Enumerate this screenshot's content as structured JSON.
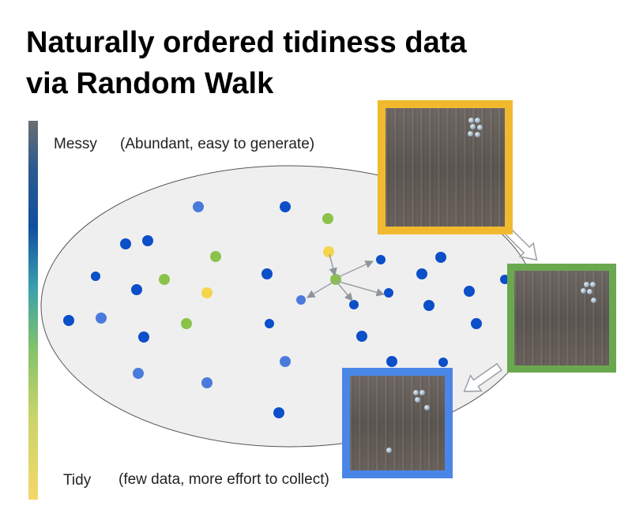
{
  "title": {
    "line1": "Naturally ordered tidiness data",
    "line2": "via Random Walk"
  },
  "scale": {
    "top_label": "Messy",
    "top_note": "(Abundant, easy to generate)",
    "bottom_label": "Tidy",
    "bottom_note": "(few data, more effort to collect)"
  },
  "colors": {
    "dark_blue": "#0b4fc9",
    "mid_blue": "#4a7bdc",
    "green": "#8bc34a",
    "yellow": "#f5d54a",
    "ellipse_fill": "#efefef",
    "arrow": "#9aa0a6",
    "frame_yellow": "#f1b92e",
    "frame_green": "#6aa84f",
    "frame_blue": "#4a86e8"
  },
  "legend_icons": [
    "gradient-scale-bar",
    "tabletop-photo-icon",
    "bottle-icon"
  ]
}
